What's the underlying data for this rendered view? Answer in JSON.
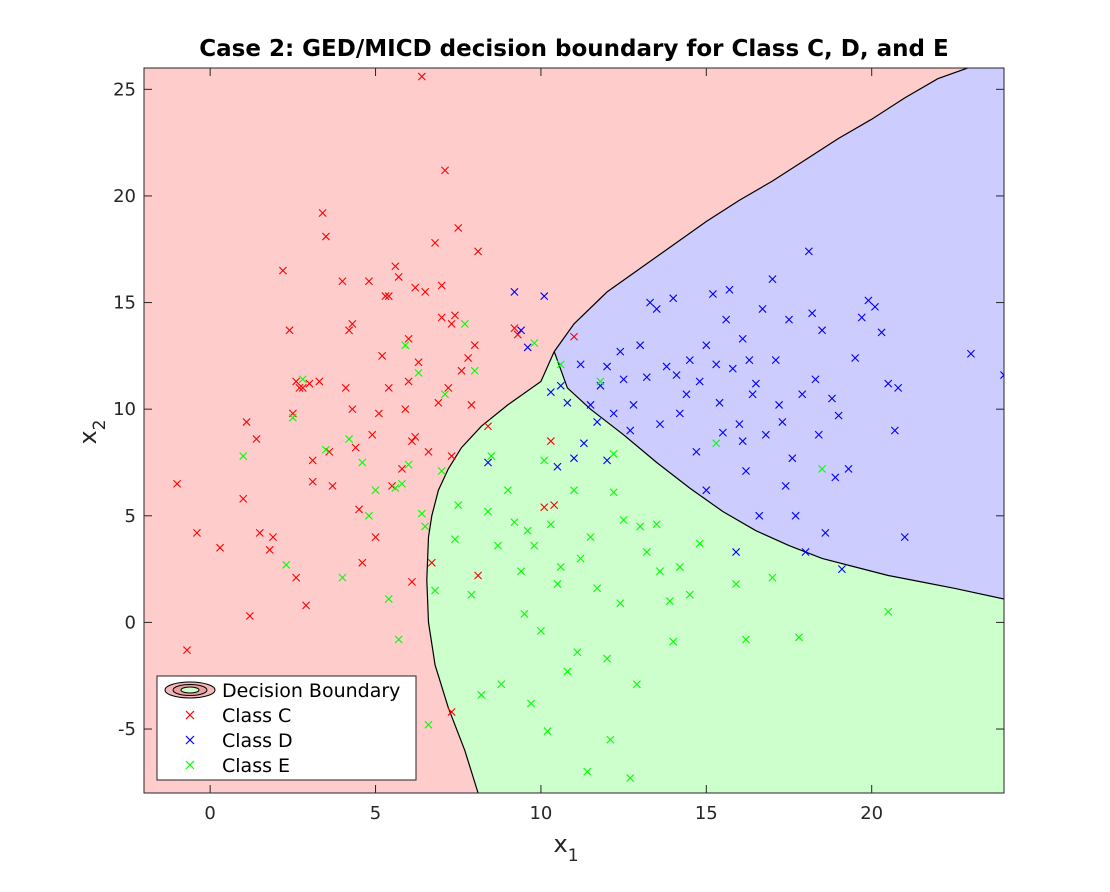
{
  "chart_data": {
    "type": "scatter",
    "title": "Case 2: GED/MICD decision boundary for Class C, D, and E",
    "xlabel": "x",
    "xlabel_sub": "1",
    "ylabel": "x",
    "ylabel_sub": "2",
    "xlim": [
      -2,
      24
    ],
    "ylim": [
      -8,
      26
    ],
    "xticks": [
      0,
      5,
      10,
      15,
      20
    ],
    "yticks": [
      -5,
      0,
      5,
      10,
      15,
      20,
      25
    ],
    "grid": false,
    "legend_position": "bottom-left",
    "legend": [
      {
        "label": "Decision Boundary",
        "kind": "contour"
      },
      {
        "label": "Class C",
        "color": "#ff0000",
        "marker": "x"
      },
      {
        "label": "Class D",
        "color": "#0000ff",
        "marker": "x"
      },
      {
        "label": "Class E",
        "color": "#00ff00",
        "marker": "x"
      }
    ],
    "regions": {
      "C": {
        "label": "Class C",
        "fill": "#ffcccc"
      },
      "D": {
        "label": "Class D",
        "fill": "#ccccff"
      },
      "E": {
        "label": "Class E",
        "fill": "#ccffcc"
      }
    },
    "boundaries": {
      "C_E": [
        [
          8.1,
          -8
        ],
        [
          7.7,
          -6
        ],
        [
          7.2,
          -4
        ],
        [
          6.8,
          -2
        ],
        [
          6.6,
          0
        ],
        [
          6.55,
          2
        ],
        [
          6.6,
          4
        ],
        [
          6.7,
          5
        ],
        [
          6.9,
          6.2
        ],
        [
          7.2,
          7.2
        ],
        [
          7.6,
          8.2
        ],
        [
          8.2,
          9.2
        ],
        [
          9.0,
          10.2
        ],
        [
          10.0,
          11.3
        ],
        [
          10.4,
          12.7
        ]
      ],
      "C_D": [
        [
          10.4,
          12.7
        ],
        [
          11.0,
          14.0
        ],
        [
          12.0,
          15.5
        ],
        [
          13.0,
          16.6
        ],
        [
          14.0,
          17.7
        ],
        [
          15.0,
          18.8
        ],
        [
          16.0,
          19.8
        ],
        [
          17.0,
          20.7
        ],
        [
          18.0,
          21.7
        ],
        [
          19.0,
          22.7
        ],
        [
          20.0,
          23.6
        ],
        [
          21.0,
          24.6
        ],
        [
          22.0,
          25.5
        ],
        [
          22.9,
          26
        ]
      ],
      "D_E": [
        [
          10.4,
          12.7
        ],
        [
          10.8,
          11.0
        ],
        [
          11.5,
          10.0
        ],
        [
          12.5,
          8.8
        ],
        [
          13.5,
          7.5
        ],
        [
          14.5,
          6.3
        ],
        [
          15.5,
          5.2
        ],
        [
          16.5,
          4.3
        ],
        [
          17.5,
          3.6
        ],
        [
          18.5,
          3.0
        ],
        [
          19.5,
          2.6
        ],
        [
          20.5,
          2.2
        ],
        [
          21.5,
          1.9
        ],
        [
          22.5,
          1.6
        ],
        [
          24,
          1.1
        ]
      ]
    },
    "series": [
      {
        "name": "Class C",
        "color": "#ff0000",
        "points": [
          [
            -1.0,
            6.5
          ],
          [
            -0.7,
            -1.3
          ],
          [
            -0.4,
            4.2
          ],
          [
            0.3,
            3.5
          ],
          [
            1.0,
            5.8
          ],
          [
            1.1,
            9.4
          ],
          [
            1.2,
            0.3
          ],
          [
            1.4,
            8.6
          ],
          [
            1.5,
            4.2
          ],
          [
            1.8,
            3.4
          ],
          [
            1.9,
            4.0
          ],
          [
            2.2,
            16.5
          ],
          [
            2.4,
            13.7
          ],
          [
            2.5,
            9.8
          ],
          [
            2.6,
            11.3
          ],
          [
            2.6,
            2.1
          ],
          [
            2.7,
            11.0
          ],
          [
            2.8,
            11.0
          ],
          [
            2.9,
            0.8
          ],
          [
            3.0,
            11.2
          ],
          [
            3.1,
            7.6
          ],
          [
            3.1,
            6.6
          ],
          [
            3.3,
            11.3
          ],
          [
            3.4,
            19.2
          ],
          [
            3.5,
            18.1
          ],
          [
            3.6,
            8.0
          ],
          [
            3.7,
            6.4
          ],
          [
            4.0,
            16.0
          ],
          [
            4.1,
            11.0
          ],
          [
            4.2,
            13.7
          ],
          [
            4.3,
            14.0
          ],
          [
            4.3,
            10.0
          ],
          [
            4.4,
            8.2
          ],
          [
            4.5,
            5.3
          ],
          [
            4.6,
            2.8
          ],
          [
            4.8,
            16.0
          ],
          [
            4.9,
            8.8
          ],
          [
            5.0,
            4.0
          ],
          [
            5.1,
            9.8
          ],
          [
            5.2,
            12.5
          ],
          [
            5.3,
            15.3
          ],
          [
            5.4,
            15.3
          ],
          [
            5.4,
            11.0
          ],
          [
            5.5,
            6.4
          ],
          [
            5.6,
            16.7
          ],
          [
            5.7,
            16.2
          ],
          [
            5.8,
            7.2
          ],
          [
            5.9,
            10.0
          ],
          [
            6.0,
            13.3
          ],
          [
            6.0,
            11.3
          ],
          [
            6.1,
            8.5
          ],
          [
            6.1,
            1.9
          ],
          [
            6.2,
            15.7
          ],
          [
            6.2,
            8.7
          ],
          [
            6.3,
            12.2
          ],
          [
            6.4,
            25.6
          ],
          [
            6.5,
            15.5
          ],
          [
            6.6,
            8.0
          ],
          [
            6.7,
            2.8
          ],
          [
            6.8,
            17.8
          ],
          [
            6.9,
            10.3
          ],
          [
            7.0,
            15.8
          ],
          [
            7.0,
            14.3
          ],
          [
            7.1,
            21.2
          ],
          [
            7.2,
            11.0
          ],
          [
            7.3,
            14.0
          ],
          [
            7.3,
            7.8
          ],
          [
            7.4,
            14.4
          ],
          [
            7.5,
            18.5
          ],
          [
            7.6,
            11.8
          ],
          [
            7.8,
            12.4
          ],
          [
            7.9,
            10.2
          ],
          [
            8.0,
            13.0
          ],
          [
            8.1,
            17.4
          ],
          [
            8.1,
            2.2
          ],
          [
            8.4,
            9.2
          ],
          [
            9.2,
            13.8
          ],
          [
            9.3,
            13.5
          ],
          [
            10.1,
            5.4
          ],
          [
            10.3,
            8.5
          ],
          [
            10.4,
            5.5
          ],
          [
            11.0,
            13.4
          ],
          [
            7.3,
            -4.2
          ]
        ]
      },
      {
        "name": "Class D",
        "color": "#0000ff",
        "points": [
          [
            8.4,
            7.5
          ],
          [
            9.2,
            15.5
          ],
          [
            9.4,
            13.7
          ],
          [
            9.6,
            12.9
          ],
          [
            10.1,
            15.3
          ],
          [
            10.3,
            10.8
          ],
          [
            10.5,
            7.3
          ],
          [
            10.6,
            11.1
          ],
          [
            10.8,
            10.3
          ],
          [
            11.0,
            7.7
          ],
          [
            11.2,
            12.1
          ],
          [
            11.3,
            8.4
          ],
          [
            11.5,
            10.2
          ],
          [
            11.7,
            9.4
          ],
          [
            11.8,
            11.1
          ],
          [
            12.0,
            12.0
          ],
          [
            12.0,
            7.6
          ],
          [
            12.2,
            9.8
          ],
          [
            12.4,
            12.7
          ],
          [
            12.5,
            11.4
          ],
          [
            12.7,
            9.0
          ],
          [
            12.8,
            10.2
          ],
          [
            13.0,
            13.0
          ],
          [
            13.2,
            11.5
          ],
          [
            13.3,
            15.0
          ],
          [
            13.5,
            14.7
          ],
          [
            13.6,
            9.3
          ],
          [
            13.8,
            12.0
          ],
          [
            14.0,
            15.2
          ],
          [
            14.1,
            11.6
          ],
          [
            14.2,
            9.8
          ],
          [
            14.4,
            10.7
          ],
          [
            14.5,
            12.3
          ],
          [
            14.7,
            8.0
          ],
          [
            14.8,
            11.3
          ],
          [
            15.0,
            13.0
          ],
          [
            15.0,
            6.2
          ],
          [
            15.2,
            15.4
          ],
          [
            15.3,
            12.1
          ],
          [
            15.4,
            10.3
          ],
          [
            15.5,
            8.9
          ],
          [
            15.6,
            14.2
          ],
          [
            15.7,
            15.6
          ],
          [
            15.8,
            11.9
          ],
          [
            15.9,
            3.3
          ],
          [
            16.0,
            9.3
          ],
          [
            16.1,
            13.3
          ],
          [
            16.2,
            7.1
          ],
          [
            16.3,
            12.3
          ],
          [
            16.4,
            10.7
          ],
          [
            16.5,
            11.2
          ],
          [
            16.6,
            5.0
          ],
          [
            16.7,
            14.7
          ],
          [
            16.8,
            8.8
          ],
          [
            17.0,
            16.1
          ],
          [
            17.1,
            12.3
          ],
          [
            17.2,
            10.2
          ],
          [
            17.3,
            9.4
          ],
          [
            17.5,
            14.2
          ],
          [
            17.6,
            7.7
          ],
          [
            17.7,
            5.0
          ],
          [
            17.9,
            10.7
          ],
          [
            18.1,
            17.4
          ],
          [
            18.2,
            14.5
          ],
          [
            18.3,
            11.4
          ],
          [
            18.4,
            8.8
          ],
          [
            18.5,
            13.7
          ],
          [
            18.6,
            4.2
          ],
          [
            18.8,
            10.5
          ],
          [
            18.9,
            6.8
          ],
          [
            19.0,
            9.7
          ],
          [
            19.1,
            2.5
          ],
          [
            19.3,
            7.2
          ],
          [
            19.5,
            12.4
          ],
          [
            19.7,
            14.3
          ],
          [
            19.9,
            15.1
          ],
          [
            20.1,
            14.8
          ],
          [
            20.3,
            13.6
          ],
          [
            20.5,
            11.2
          ],
          [
            20.7,
            9.0
          ],
          [
            20.8,
            11.0
          ],
          [
            21.0,
            4.0
          ],
          [
            23.0,
            12.6
          ],
          [
            24.0,
            11.6
          ],
          [
            16.1,
            8.5
          ],
          [
            18.0,
            3.3
          ],
          [
            17.4,
            6.4
          ]
        ]
      },
      {
        "name": "Class E",
        "color": "#00ff00",
        "points": [
          [
            1.0,
            7.8
          ],
          [
            2.3,
            2.7
          ],
          [
            2.5,
            9.6
          ],
          [
            2.8,
            11.4
          ],
          [
            3.5,
            8.1
          ],
          [
            4.0,
            2.1
          ],
          [
            4.2,
            8.6
          ],
          [
            4.6,
            7.5
          ],
          [
            4.8,
            5.0
          ],
          [
            5.0,
            6.2
          ],
          [
            5.4,
            1.1
          ],
          [
            5.6,
            6.3
          ],
          [
            5.7,
            -0.8
          ],
          [
            5.8,
            6.5
          ],
          [
            5.9,
            13.0
          ],
          [
            6.0,
            7.4
          ],
          [
            6.3,
            11.7
          ],
          [
            6.4,
            5.1
          ],
          [
            6.5,
            4.5
          ],
          [
            6.6,
            -4.8
          ],
          [
            6.8,
            1.5
          ],
          [
            7.0,
            7.1
          ],
          [
            7.1,
            10.7
          ],
          [
            7.4,
            3.9
          ],
          [
            7.5,
            5.5
          ],
          [
            7.7,
            14.0
          ],
          [
            7.9,
            1.3
          ],
          [
            8.0,
            11.8
          ],
          [
            8.2,
            -3.4
          ],
          [
            8.4,
            5.2
          ],
          [
            8.5,
            7.8
          ],
          [
            8.7,
            3.6
          ],
          [
            8.8,
            -2.9
          ],
          [
            9.0,
            6.2
          ],
          [
            9.2,
            4.7
          ],
          [
            9.4,
            2.4
          ],
          [
            9.5,
            0.4
          ],
          [
            9.6,
            4.3
          ],
          [
            9.7,
            -3.8
          ],
          [
            9.8,
            3.6
          ],
          [
            10.0,
            -0.4
          ],
          [
            10.1,
            7.6
          ],
          [
            10.2,
            -5.1
          ],
          [
            10.3,
            4.6
          ],
          [
            10.5,
            1.8
          ],
          [
            10.6,
            2.6
          ],
          [
            10.8,
            -2.3
          ],
          [
            11.0,
            6.2
          ],
          [
            11.1,
            -1.4
          ],
          [
            11.2,
            3.0
          ],
          [
            11.4,
            -7.0
          ],
          [
            11.5,
            4.0
          ],
          [
            11.7,
            1.6
          ],
          [
            11.8,
            11.3
          ],
          [
            12.0,
            -1.7
          ],
          [
            12.1,
            -5.5
          ],
          [
            12.2,
            6.1
          ],
          [
            12.4,
            0.9
          ],
          [
            12.5,
            4.8
          ],
          [
            12.7,
            -7.3
          ],
          [
            12.9,
            -2.9
          ],
          [
            13.0,
            4.5
          ],
          [
            13.2,
            3.3
          ],
          [
            13.5,
            4.6
          ],
          [
            13.6,
            2.4
          ],
          [
            13.9,
            1.0
          ],
          [
            14.0,
            -0.9
          ],
          [
            14.2,
            2.6
          ],
          [
            14.5,
            1.3
          ],
          [
            14.8,
            3.7
          ],
          [
            15.3,
            8.4
          ],
          [
            15.9,
            1.8
          ],
          [
            16.2,
            -0.8
          ],
          [
            17.0,
            2.1
          ],
          [
            17.8,
            -0.7
          ],
          [
            18.5,
            7.2
          ],
          [
            20.5,
            0.5
          ],
          [
            9.8,
            13.1
          ],
          [
            10.6,
            12.1
          ],
          [
            12.2,
            7.9
          ]
        ]
      }
    ]
  }
}
